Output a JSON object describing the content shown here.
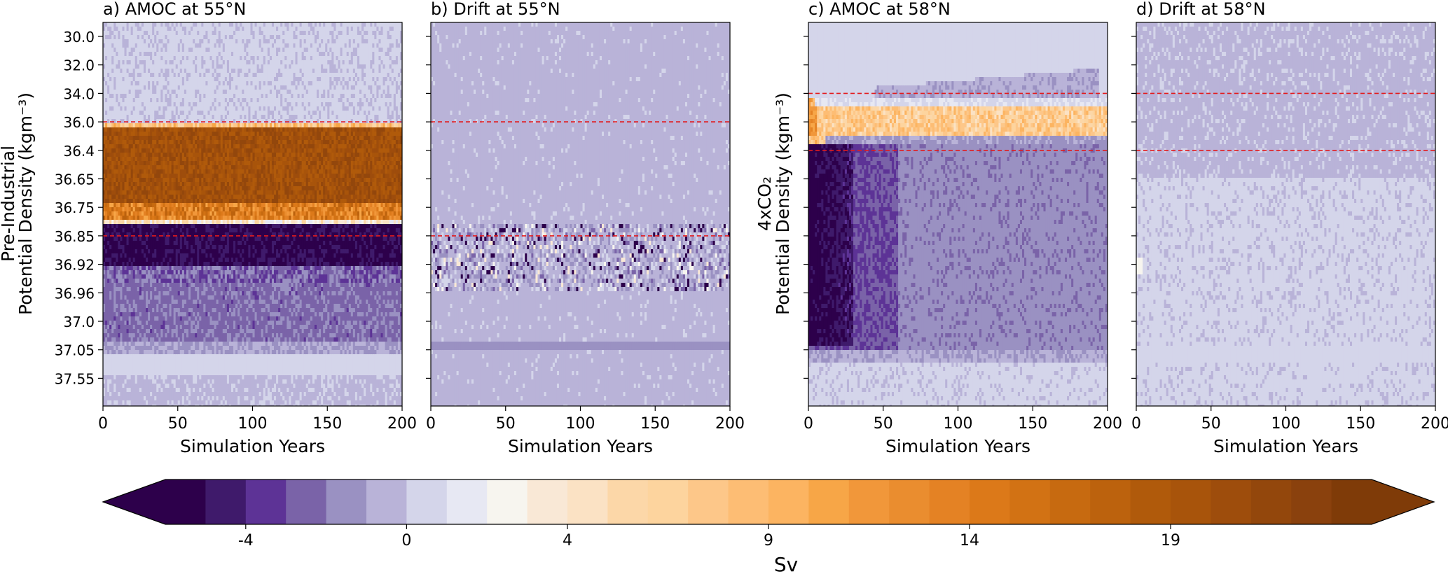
{
  "chart_data": {
    "type": "heatmap",
    "colorbar": {
      "label": "Sv",
      "ticks": [
        -4,
        0,
        4,
        9,
        14,
        19
      ],
      "levels_start": -6,
      "levels_step": 1,
      "colors": [
        "#2d004b",
        "#3f1a6b",
        "#5d3396",
        "#7a63a8",
        "#9a91c2",
        "#b9b3d8",
        "#d4d5ea",
        "#e7e8f3",
        "#f7f5ef",
        "#f9e8d6",
        "#fbe2c4",
        "#fcd7a8",
        "#fdd49e",
        "#fdc789",
        "#fdbd74",
        "#fcb461",
        "#f7a647",
        "#f1973a",
        "#ea8d2f",
        "#e48224",
        "#dc7919",
        "#d27214",
        "#c76a10",
        "#bc620d",
        "#b05a0b",
        "#a8540b",
        "#9e4d0c",
        "#93470c",
        "#8a410d",
        "#7f3b08"
      ],
      "under_color": "#2d004b",
      "over_color": "#7f3b08"
    },
    "panels": [
      {
        "title": "a) AMOC at 55°N",
        "xlabel": "Simulation Years",
        "ylabel_line1": "Pre-Industrial",
        "ylabel_line2": "Potential Density (kgm⁻³)",
        "xlim": [
          0,
          200
        ],
        "xticks": [
          0,
          50,
          100,
          150,
          200
        ],
        "yticks": [
          "30.0",
          "32.0",
          "34.0",
          "36.0",
          "36.4",
          "36.65",
          "36.75",
          "36.85",
          "36.92",
          "36.96",
          "37.0",
          "37.05",
          "37.55"
        ],
        "show_ytick_labels": true,
        "dashed_lines_at": [
          "36.0",
          "36.85"
        ],
        "description_profile": [
          0,
          0,
          0,
          0.2,
          22,
          22,
          22,
          17,
          -6,
          -5,
          -2,
          -2,
          0.5,
          0
        ]
      },
      {
        "title": "b) Drift at 55°N",
        "xlabel": "Simulation Years",
        "xlim": [
          0,
          200
        ],
        "xticks": [
          0,
          50,
          100,
          150,
          200
        ],
        "yticks": [
          "30.0",
          "32.0",
          "34.0",
          "36.0",
          "36.4",
          "36.65",
          "36.75",
          "36.85",
          "36.92",
          "36.96",
          "37.0",
          "37.05",
          "37.55"
        ],
        "show_ytick_labels": false,
        "dashed_lines_at": [
          "36.0",
          "36.85"
        ]
      },
      {
        "title": "c) AMOC at 58°N",
        "xlabel": "Simulation Years",
        "ylabel_line1": "4xCO₂",
        "ylabel_line2": "Potential Density (kgm⁻³)",
        "xlim": [
          0,
          200
        ],
        "xticks": [
          0,
          50,
          100,
          150,
          200
        ],
        "yticks": [
          "30.0",
          "32.0",
          "34.0",
          "36.0",
          "36.4",
          "36.65",
          "36.75",
          "36.85",
          "36.92",
          "36.96",
          "37.0",
          "37.05",
          "37.55"
        ],
        "show_ytick_labels": false,
        "dashed_lines_at": [
          "34.0",
          "36.4"
        ]
      },
      {
        "title": "d) Drift at 58°N",
        "xlabel": "Simulation Years",
        "xlim": [
          0,
          200
        ],
        "xticks": [
          0,
          50,
          100,
          150,
          200
        ],
        "yticks": [
          "30.0",
          "32.0",
          "34.0",
          "36.0",
          "36.4",
          "36.65",
          "36.75",
          "36.85",
          "36.92",
          "36.96",
          "37.0",
          "37.05",
          "37.55"
        ],
        "show_ytick_labels": false,
        "dashed_lines_at": [
          "34.0",
          "36.4"
        ]
      }
    ]
  }
}
